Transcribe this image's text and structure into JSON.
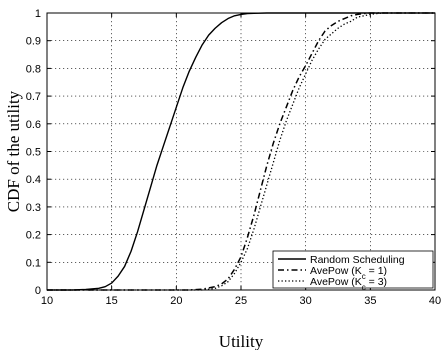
{
  "chart_data": {
    "type": "line",
    "xlabel": "Utility",
    "ylabel": "CDF of the utility",
    "xlim": [
      10,
      40
    ],
    "ylim": [
      0,
      1
    ],
    "xticks": [
      10,
      15,
      20,
      25,
      30,
      35,
      40
    ],
    "yticks": [
      0,
      0.1,
      0.2,
      0.3,
      0.4,
      0.5,
      0.6,
      0.7,
      0.8,
      0.9,
      1
    ],
    "ytick_labels": [
      "0",
      "0.1",
      "0.2",
      "0.3",
      "0.4",
      "0.5",
      "0.6",
      "0.7",
      "0.8",
      "0.9",
      "1"
    ],
    "grid": true,
    "legend_position": "bottom-right",
    "series": [
      {
        "name": "Random Scheduling",
        "style": "solid",
        "x": [
          10,
          12,
          13,
          14,
          14.5,
          15,
          15.5,
          16,
          16.5,
          17,
          17.5,
          18,
          18.5,
          19,
          19.5,
          20,
          20.5,
          21,
          21.5,
          22,
          22.5,
          23,
          23.5,
          24,
          24.5,
          25,
          25.5,
          26,
          27,
          28,
          29,
          30,
          40
        ],
        "y": [
          0,
          0,
          0.002,
          0.006,
          0.012,
          0.025,
          0.05,
          0.085,
          0.14,
          0.21,
          0.29,
          0.37,
          0.45,
          0.52,
          0.59,
          0.66,
          0.73,
          0.79,
          0.84,
          0.885,
          0.92,
          0.945,
          0.965,
          0.98,
          0.99,
          0.995,
          0.998,
          0.999,
          1,
          1,
          1,
          1,
          1
        ]
      },
      {
        "name": "AvePow (K",
        "name_sub": "c",
        "name_tail": " = 1)",
        "style": "dashdot",
        "x": [
          10,
          21,
          22,
          23,
          23.5,
          24,
          24.5,
          25,
          25.5,
          26,
          26.5,
          27,
          27.5,
          28,
          28.5,
          29,
          29.5,
          30,
          30.5,
          31,
          31.5,
          32,
          32.5,
          33,
          33.5,
          34,
          34.5,
          35,
          36,
          40
        ],
        "y": [
          0,
          0,
          0.003,
          0.012,
          0.022,
          0.04,
          0.075,
          0.12,
          0.19,
          0.27,
          0.36,
          0.45,
          0.53,
          0.6,
          0.66,
          0.72,
          0.77,
          0.81,
          0.855,
          0.9,
          0.935,
          0.955,
          0.97,
          0.98,
          0.99,
          0.995,
          0.998,
          1,
          1,
          1
        ]
      },
      {
        "name": "AvePow (K",
        "name_sub": "c",
        "name_tail": " = 3)",
        "style": "dotted",
        "x": [
          10,
          22,
          23,
          23.5,
          24,
          24.5,
          25,
          25.5,
          26,
          26.5,
          27,
          27.5,
          28,
          28.5,
          29,
          29.5,
          30,
          30.5,
          31,
          31.5,
          32,
          32.5,
          33,
          33.5,
          34,
          34.5,
          35,
          35.5,
          36,
          37,
          40
        ],
        "y": [
          0,
          0,
          0.006,
          0.015,
          0.03,
          0.06,
          0.1,
          0.15,
          0.22,
          0.3,
          0.38,
          0.46,
          0.54,
          0.61,
          0.67,
          0.73,
          0.78,
          0.83,
          0.87,
          0.905,
          0.925,
          0.945,
          0.96,
          0.97,
          0.985,
          0.99,
          0.995,
          0.998,
          1,
          1,
          1
        ]
      }
    ]
  }
}
